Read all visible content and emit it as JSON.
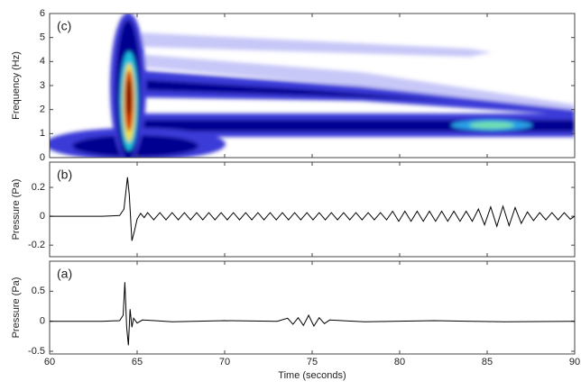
{
  "chart_data": [
    {
      "type": "spectrogram",
      "annotation": "(c)",
      "ylabel": "Frequency (Hz)",
      "xlim": [
        60,
        90
      ],
      "xticks": [
        60,
        65,
        70,
        75,
        80,
        85,
        90
      ],
      "ylim": [
        0,
        6
      ],
      "yticks": [
        0,
        1,
        2,
        3,
        4,
        5,
        6
      ]
    },
    {
      "type": "line",
      "annotation": "(b)",
      "ylabel": "Pressure (Pa)",
      "color": "#000000",
      "xlim": [
        60,
        90
      ],
      "xticks": [
        60,
        65,
        70,
        75,
        80,
        85,
        90
      ],
      "ylim": [
        -0.28,
        0.375
      ],
      "yticks": [
        -0.2,
        0,
        0.2
      ],
      "x": [
        60,
        63,
        64,
        64.25,
        64.45,
        64.55,
        64.7,
        64.85,
        65.0,
        65.2,
        65.4,
        65.6,
        65.95,
        66.3,
        66.65,
        67,
        67.35,
        67.7,
        68.05,
        68.4,
        68.75,
        69.1,
        69.45,
        69.8,
        70.15,
        70.5,
        70.85,
        71.2,
        71.55,
        71.9,
        72.25,
        72.6,
        72.95,
        73.3,
        73.65,
        74,
        74.35,
        74.7,
        75.05,
        75.4,
        75.75,
        76.1,
        76.45,
        76.8,
        77.15,
        77.5,
        77.85,
        78.2,
        78.55,
        78.9,
        79.25,
        79.6,
        79.95,
        80.3,
        80.65,
        81,
        81.35,
        81.7,
        82.05,
        82.4,
        82.75,
        83.1,
        83.45,
        83.8,
        84.15,
        84.5,
        84.85,
        85.2,
        85.55,
        85.9,
        86.25,
        86.6,
        86.95,
        87.3,
        87.65,
        88,
        88.35,
        88.7,
        89.05,
        89.4,
        89.75,
        90
      ],
      "values": [
        0,
        0,
        0.005,
        0.05,
        0.27,
        0.15,
        -0.17,
        -0.1,
        -0.02,
        0.02,
        -0.01,
        0.025,
        -0.025,
        0.025,
        -0.025,
        0.025,
        -0.025,
        0.025,
        -0.025,
        0.025,
        -0.025,
        0.025,
        -0.025,
        0.025,
        -0.025,
        0.025,
        -0.025,
        0.025,
        -0.025,
        0.025,
        -0.025,
        0.025,
        -0.025,
        0.025,
        -0.025,
        0.025,
        -0.025,
        0.025,
        -0.025,
        0.025,
        -0.025,
        0.025,
        -0.025,
        0.025,
        -0.025,
        0.025,
        -0.025,
        0.025,
        -0.025,
        0.025,
        -0.025,
        0.035,
        -0.035,
        0.035,
        -0.035,
        0.035,
        -0.035,
        0.035,
        -0.035,
        0.035,
        -0.035,
        0.035,
        -0.035,
        0.035,
        -0.035,
        0.05,
        -0.06,
        0.065,
        -0.07,
        0.07,
        -0.065,
        0.06,
        -0.05,
        0.03,
        -0.03,
        0.025,
        -0.025,
        0.025,
        -0.025,
        0.025,
        -0.02,
        0
      ]
    },
    {
      "type": "line",
      "annotation": "(a)",
      "ylabel": "Pressure (Pa)",
      "xlabel": "Time (seconds)",
      "color": "#000000",
      "xlim": [
        60,
        90
      ],
      "xticks": [
        60,
        65,
        70,
        75,
        80,
        85,
        90
      ],
      "ylim": [
        -0.545,
        1.0
      ],
      "yticks": [
        -0.5,
        0,
        0.5
      ],
      "x": [
        60,
        63,
        64,
        64.2,
        64.3,
        64.4,
        64.5,
        64.6,
        64.7,
        64.8,
        65,
        65.3,
        66,
        67,
        70,
        73,
        73.6,
        73.9,
        74.2,
        74.5,
        74.8,
        75.1,
        75.4,
        75.7,
        76,
        78,
        82,
        86,
        90
      ],
      "values": [
        0,
        0,
        0.01,
        0.1,
        0.65,
        -0.1,
        -0.4,
        0.2,
        -0.1,
        0.05,
        -0.03,
        0.02,
        0.01,
        -0.01,
        0.01,
        0,
        0.05,
        -0.05,
        0.06,
        -0.07,
        0.1,
        -0.08,
        0.06,
        -0.04,
        0.02,
        -0.01,
        0.01,
        -0.01,
        0
      ]
    }
  ]
}
